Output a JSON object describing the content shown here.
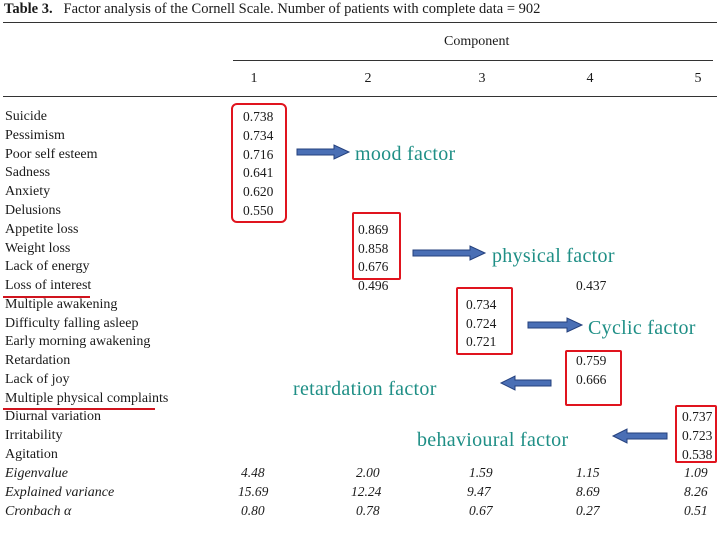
{
  "table": {
    "caption_label": "Table 3.",
    "caption_text": "Factor analysis of the Cornell Scale. Number of patients with complete data = 902",
    "component_header": "Component",
    "column_numbers": [
      "1",
      "2",
      "3",
      "4",
      "5"
    ],
    "rows": [
      "Suicide",
      "Pessimism",
      "Poor self esteem",
      "Sadness",
      "Anxiety",
      "Delusions",
      "Appetite loss",
      "Weight loss",
      "Lack of energy",
      "Loss of interest",
      "Multiple awakening",
      "Difficulty falling asleep",
      "Early morning awakening",
      "Retardation",
      "Lack of joy",
      "Multiple physical complaints",
      "Diurnal variation",
      "Irritability",
      "Agitation"
    ],
    "stat_rows": [
      "Eigenvalue",
      "Explained variance",
      "Cronbach α"
    ],
    "col1": [
      "0.738",
      "0.734",
      "0.716",
      "0.641",
      "0.620",
      "0.550"
    ],
    "col2": [
      "0.869",
      "0.858",
      "0.676",
      "0.496"
    ],
    "col3": [
      "0.734",
      "0.724",
      "0.721"
    ],
    "col4_extra": "0.437",
    "col4": [
      "0.759",
      "0.666"
    ],
    "col5": [
      "0.737",
      "0.723",
      "0.538"
    ],
    "eigenvalue": [
      "4.48",
      "2.00",
      "1.59",
      "1.15",
      "1.09"
    ],
    "explained_variance": [
      "15.69",
      "12.24",
      "9.47",
      "8.69",
      "8.26"
    ],
    "cronbach": [
      "0.80",
      "0.78",
      "0.67",
      "0.27",
      "0.51"
    ]
  },
  "annotations": {
    "mood": "mood factor",
    "physical": "physical factor",
    "cyclic": "Cyclic factor",
    "retardation": "retardation factor",
    "behavioural": "behavioural factor",
    "box_color": "#e0141e",
    "arrow_color": "#4a6fb5",
    "label_color": "#1f8f86"
  }
}
